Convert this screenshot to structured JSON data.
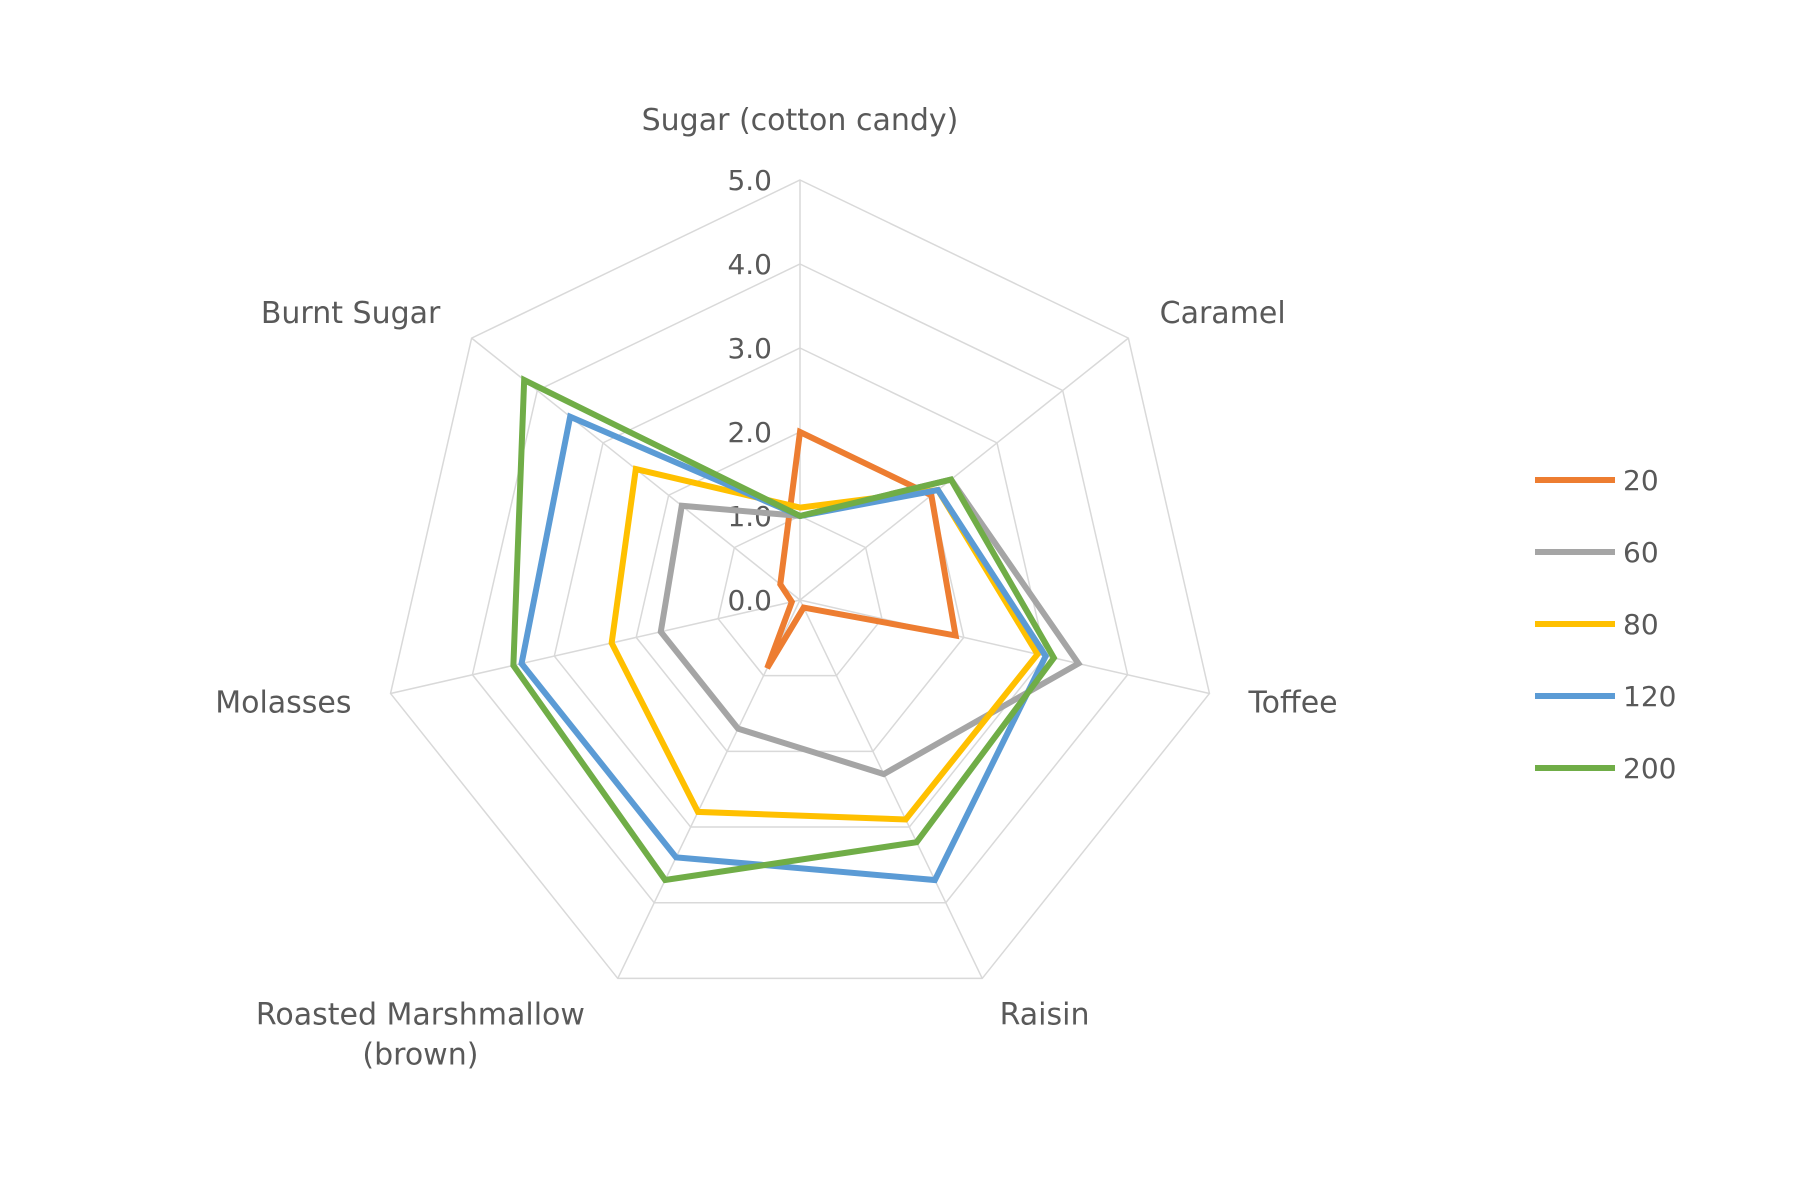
{
  "chart_data": {
    "type": "radar",
    "title": "",
    "categories": [
      "Sugar (cotton candy)",
      "Caramel",
      "Toffee",
      "Raisin",
      "Roasted Marshmallow (brown)",
      "Molasses",
      "Burnt Sugar"
    ],
    "category_label_lines": [
      [
        "Sugar (cotton candy)"
      ],
      [
        "Caramel"
      ],
      [
        "Toffee"
      ],
      [
        "Raisin"
      ],
      [
        "Roasted Marshmallow",
        "(brown)"
      ],
      [
        "Molasses"
      ],
      [
        "Burnt Sugar"
      ]
    ],
    "rlim": [
      0,
      5
    ],
    "ticks": [
      "0.0",
      "1.0",
      "2.0",
      "3.0",
      "4.0",
      "5.0"
    ],
    "grid": true,
    "legend_position": "right",
    "series": [
      {
        "name": "20",
        "color": "#ED7D31",
        "values": [
          2.0,
          2.0,
          1.9,
          0.1,
          0.9,
          0.1,
          0.3
        ]
      },
      {
        "name": "60",
        "color": "#A5A5A5",
        "values": [
          1.0,
          2.3,
          3.4,
          2.3,
          1.7,
          1.7,
          1.8
        ]
      },
      {
        "name": "80",
        "color": "#FFC000",
        "values": [
          1.1,
          2.1,
          2.9,
          2.9,
          2.8,
          2.3,
          2.5
        ]
      },
      {
        "name": "120",
        "color": "#5B9BD5",
        "values": [
          1.0,
          2.1,
          3.0,
          3.7,
          3.4,
          3.4,
          3.5
        ]
      },
      {
        "name": "200",
        "color": "#70AD47",
        "values": [
          1.0,
          2.3,
          3.1,
          3.2,
          3.7,
          3.5,
          4.2
        ]
      }
    ]
  }
}
